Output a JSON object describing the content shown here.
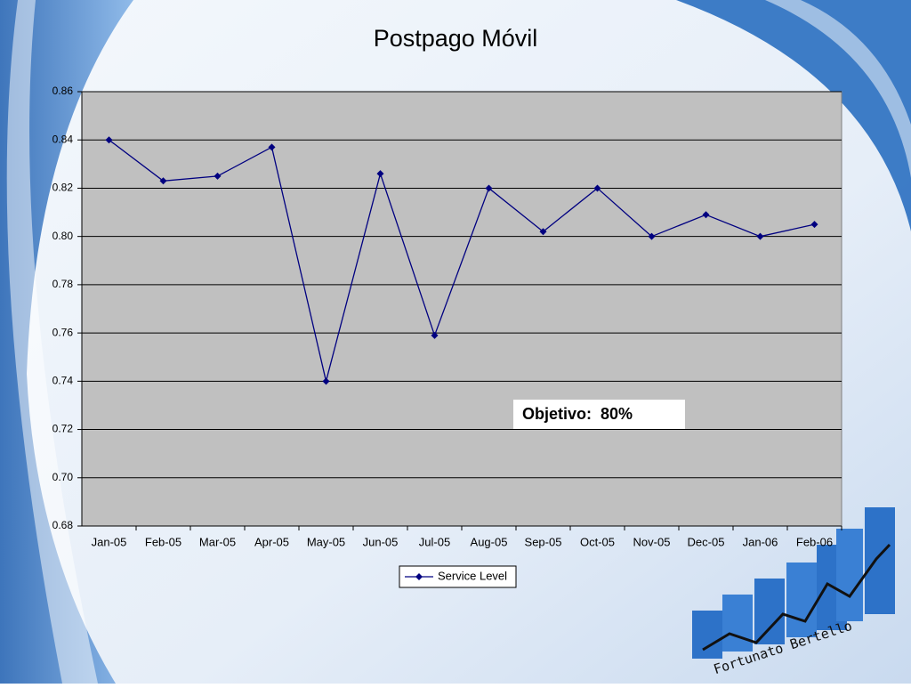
{
  "chart_data": {
    "type": "line",
    "title": "Postpago Móvil",
    "categories": [
      "Jan-05",
      "Feb-05",
      "Mar-05",
      "Apr-05",
      "May-05",
      "Jun-05",
      "Jul-05",
      "Aug-05",
      "Sep-05",
      "Oct-05",
      "Nov-05",
      "Dec-05",
      "Jan-06",
      "Feb-06"
    ],
    "series": [
      {
        "name": "Service Level",
        "color": "#000080",
        "values": [
          0.84,
          0.823,
          0.825,
          0.837,
          0.74,
          0.826,
          0.759,
          0.82,
          0.802,
          0.82,
          0.8,
          0.809,
          0.8,
          0.805
        ]
      }
    ],
    "ylim": [
      0.68,
      0.86
    ],
    "yticks": [
      0.68,
      {
        "value": 0.7,
        "label": "0.70"
      },
      0.72,
      0.74,
      0.76,
      0.78,
      {
        "value": 0.8,
        "label": "0.80"
      },
      0.82,
      0.84,
      0.86
    ],
    "grid": true,
    "annotation": "Objetivo:  80%",
    "legend": "bottom"
  },
  "logo": {
    "text": "Fortunato Bertello"
  }
}
